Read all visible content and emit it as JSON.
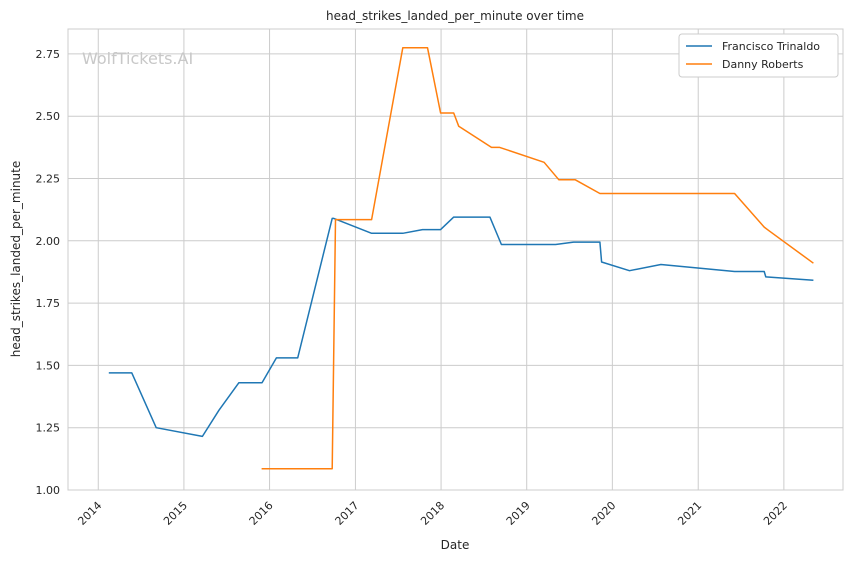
{
  "chart_data": {
    "type": "line",
    "title": "head_strikes_landed_per_minute over time",
    "xlabel": "Date",
    "ylabel": "head_strikes_landed_per_minute",
    "watermark": "WolfTickets.AI",
    "xlim": [
      "2013-08-25",
      "2022-09-10"
    ],
    "ylim": [
      1.0,
      2.85
    ],
    "x_ticks": [
      "2014",
      "2015",
      "2016",
      "2017",
      "2018",
      "2019",
      "2020",
      "2021",
      "2022"
    ],
    "y_ticks": [
      "1.00",
      "1.25",
      "1.50",
      "1.75",
      "2.00",
      "2.25",
      "2.50",
      "2.75"
    ],
    "grid": true,
    "legend_position": "top-right",
    "series": [
      {
        "name": "Francisco Trinaldo",
        "color": "#1f77b4",
        "points": [
          [
            "2014-02-15",
            1.47
          ],
          [
            "2014-05-24",
            1.47
          ],
          [
            "2014-09-05",
            1.25
          ],
          [
            "2015-03-21",
            1.215
          ],
          [
            "2015-05-30",
            1.32
          ],
          [
            "2015-08-23",
            1.43
          ],
          [
            "2015-11-30",
            1.43
          ],
          [
            "2016-01-30",
            1.53
          ],
          [
            "2016-04-30",
            1.53
          ],
          [
            "2016-09-24",
            2.09
          ],
          [
            "2016-10-01",
            2.09
          ],
          [
            "2017-03-11",
            2.03
          ],
          [
            "2017-07-22",
            2.03
          ],
          [
            "2017-10-14",
            2.045
          ],
          [
            "2017-12-30",
            2.045
          ],
          [
            "2018-02-24",
            2.095
          ],
          [
            "2018-07-28",
            2.095
          ],
          [
            "2018-09-15",
            1.985
          ],
          [
            "2019-05-04",
            1.985
          ],
          [
            "2019-07-20",
            1.995
          ],
          [
            "2019-11-09",
            1.995
          ],
          [
            "2019-11-16",
            1.915
          ],
          [
            "2020-03-14",
            1.88
          ],
          [
            "2020-07-26",
            1.905
          ],
          [
            "2021-06-05",
            1.877
          ],
          [
            "2021-10-09",
            1.877
          ],
          [
            "2021-10-16",
            1.855
          ],
          [
            "2022-05-07",
            1.842
          ]
        ]
      },
      {
        "name": "Danny Roberts",
        "color": "#ff7f0e",
        "points": [
          [
            "2015-11-28",
            1.085
          ],
          [
            "2016-09-24",
            1.085
          ],
          [
            "2016-10-08",
            2.085
          ],
          [
            "2017-03-11",
            2.085
          ],
          [
            "2017-07-22",
            2.775
          ],
          [
            "2017-11-04",
            2.775
          ],
          [
            "2017-12-30",
            2.513
          ],
          [
            "2018-02-24",
            2.513
          ],
          [
            "2018-03-17",
            2.46
          ],
          [
            "2018-08-04",
            2.375
          ],
          [
            "2018-09-08",
            2.375
          ],
          [
            "2019-03-16",
            2.315
          ],
          [
            "2019-05-18",
            2.245
          ],
          [
            "2019-07-27",
            2.245
          ],
          [
            "2019-11-09",
            2.19
          ],
          [
            "2021-06-05",
            2.19
          ],
          [
            "2021-10-09",
            2.055
          ],
          [
            "2021-10-30",
            2.04
          ],
          [
            "2022-05-07",
            1.91
          ]
        ]
      }
    ]
  }
}
